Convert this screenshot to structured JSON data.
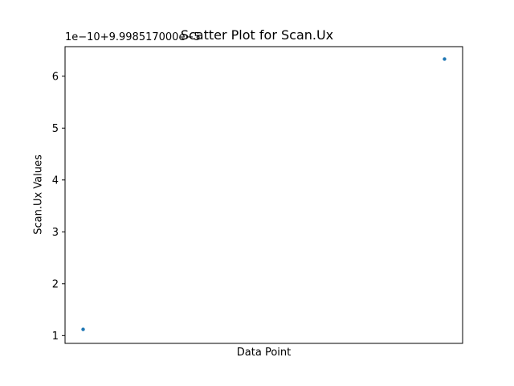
{
  "chart_data": {
    "type": "scatter",
    "title": "Scatter Plot for Scan.Ux",
    "xlabel": "Data Point",
    "ylabel": "Scan.Ux Values",
    "y_offset_label": "1e−10+9.998517000e−5",
    "y_tick_labels": [
      "1",
      "2",
      "3",
      "4",
      "5",
      "6"
    ],
    "x_tick_labels": [],
    "ylim": [
      0.85,
      6.57
    ],
    "xlim": [
      -0.05,
      1.05
    ],
    "grid": false,
    "series": [
      {
        "color": "#1f77b4",
        "points": [
          {
            "x": 0,
            "y": 1.12
          },
          {
            "x": 1,
            "y": 6.33
          }
        ]
      }
    ]
  }
}
